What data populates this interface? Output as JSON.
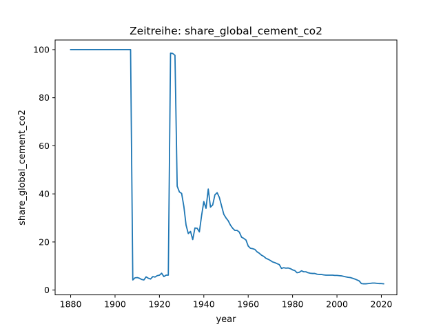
{
  "chart_data": {
    "type": "line",
    "title": "Zeitreihe: share_global_cement_co2",
    "xlabel": "year",
    "ylabel": "share_global_cement_co2",
    "xlim": [
      1873,
      2027
    ],
    "ylim": [
      -2,
      104
    ],
    "x_ticks": [
      1880,
      1900,
      1920,
      1940,
      1960,
      1980,
      2000,
      2020
    ],
    "y_ticks": [
      0,
      20,
      40,
      60,
      80,
      100
    ],
    "x_tick_labels": [
      "1880",
      "1900",
      "1920",
      "1940",
      "1960",
      "1980",
      "2000",
      "2020"
    ],
    "y_tick_labels": [
      "0",
      "20",
      "40",
      "60",
      "80",
      "100"
    ],
    "grid": false,
    "series": [
      {
        "name": "share_global_cement_co2",
        "color": "#1f77b4",
        "x": [
          1880,
          1907,
          1908,
          1909,
          1910,
          1911,
          1912,
          1913,
          1914,
          1915,
          1916,
          1917,
          1918,
          1919,
          1920,
          1921,
          1922,
          1923,
          1924,
          1925,
          1926,
          1927,
          1928,
          1929,
          1930,
          1931,
          1932,
          1933,
          1934,
          1935,
          1936,
          1937,
          1938,
          1939,
          1940,
          1941,
          1942,
          1943,
          1944,
          1945,
          1946,
          1947,
          1948,
          1949,
          1950,
          1951,
          1952,
          1953,
          1954,
          1955,
          1956,
          1957,
          1958,
          1959,
          1960,
          1961,
          1962,
          1963,
          1964,
          1965,
          1966,
          1967,
          1968,
          1969,
          1970,
          1971,
          1972,
          1973,
          1974,
          1975,
          1976,
          1977,
          1978,
          1979,
          1980,
          1981,
          1982,
          1983,
          1984,
          1985,
          1986,
          1987,
          1988,
          1989,
          1990,
          1991,
          1992,
          1993,
          1994,
          1995,
          1996,
          1997,
          1998,
          1999,
          2000,
          2001,
          2002,
          2003,
          2004,
          2005,
          2006,
          2007,
          2008,
          2009,
          2010,
          2011,
          2012,
          2013,
          2014,
          2015,
          2016,
          2017,
          2018,
          2019,
          2020,
          2021
        ],
        "y": [
          100,
          100,
          4.2,
          5.1,
          5.2,
          4.9,
          4.4,
          4.2,
          5.5,
          4.9,
          4.6,
          5.6,
          5.4,
          6.0,
          6.2,
          7.0,
          5.6,
          6.2,
          6.2,
          98.5,
          98.4,
          97.6,
          43.2,
          40.8,
          40.2,
          34.8,
          27.0,
          23.5,
          24.4,
          21.0,
          25.8,
          25.7,
          24.2,
          31.0,
          36.8,
          34.0,
          42.0,
          34.5,
          35.4,
          39.6,
          40.5,
          38.5,
          35.0,
          31.5,
          30.0,
          28.8,
          27.0,
          25.7,
          24.8,
          24.8,
          24.1,
          22.0,
          21.5,
          20.8,
          18.3,
          17.4,
          17.2,
          16.9,
          15.9,
          15.3,
          14.5,
          14.0,
          13.2,
          12.8,
          12.3,
          11.7,
          11.4,
          11.0,
          10.6,
          9.0,
          9.3,
          9.1,
          9.2,
          8.9,
          8.4,
          8.1,
          7.2,
          7.4,
          8.0,
          7.6,
          7.6,
          7.2,
          7.0,
          6.9,
          6.9,
          6.6,
          6.5,
          6.5,
          6.3,
          6.2,
          6.2,
          6.2,
          6.2,
          6.1,
          6.1,
          6.0,
          5.9,
          5.7,
          5.5,
          5.3,
          5.2,
          4.9,
          4.6,
          4.2,
          3.8,
          2.7,
          2.6,
          2.6,
          2.7,
          2.8,
          2.9,
          2.9,
          2.8,
          2.7,
          2.7,
          2.6
        ]
      }
    ]
  }
}
